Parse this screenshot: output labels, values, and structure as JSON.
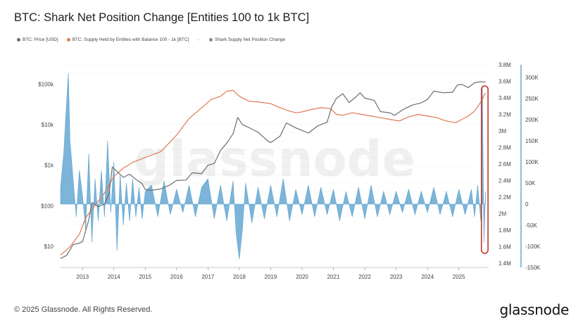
{
  "chart_data": {
    "type": "line",
    "title": "BTC: Shark Net Position Change [Entities 100 to 1k BTC]",
    "watermark": "glassnode",
    "log_left_axis": true,
    "legend": [
      {
        "label": "BTC: Price [USD]",
        "color": "#6e6e6e"
      },
      {
        "label": "BTC: Supply Held by Entities with Balance 100 - 1k [BTC]",
        "color": "#e07a55"
      },
      {
        "label": "Shark Supply Net Position Change",
        "color": "#5ba3cf"
      }
    ],
    "legend_separator": "-",
    "x_ticks": [
      "2013",
      "2014",
      "2015",
      "2016",
      "2017",
      "2018",
      "2019",
      "2020",
      "2021",
      "2022",
      "2023",
      "2024",
      "2025"
    ],
    "y_left_ticks": [
      "$100k",
      "$10k",
      "$1k",
      "$100",
      "$10"
    ],
    "y_mid_ticks": [
      "3.8M",
      "3.6M",
      "3.4M",
      "3.2M",
      "3M",
      "2.8M",
      "2.6M",
      "2.4M",
      "2.2M",
      "2M",
      "1.8M",
      "1.6M",
      "1.4M"
    ],
    "y_right_ticks": [
      "300K",
      "250K",
      "200K",
      "150K",
      "100K",
      "50K",
      "0",
      "-50K",
      "-100K",
      "-150K"
    ],
    "xlim": [
      2012.3,
      2025.95
    ],
    "y_left_range_usd": [
      3,
      300000
    ],
    "y_mid_range": [
      1350000,
      3800000
    ],
    "y_right_range": [
      -150000,
      330000
    ],
    "series": [
      {
        "name": "BTC: Price [USD]",
        "color": "#6e6e6e",
        "axis": "left",
        "x": [
          2012.3,
          2012.5,
          2012.7,
          2012.9,
          2013.0,
          2013.2,
          2013.3,
          2013.5,
          2013.7,
          2013.85,
          2013.95,
          2014.1,
          2014.3,
          2014.5,
          2014.7,
          2014.9,
          2015.0,
          2015.2,
          2015.5,
          2015.8,
          2016.0,
          2016.3,
          2016.5,
          2016.8,
          2017.0,
          2017.2,
          2017.4,
          2017.6,
          2017.8,
          2017.95,
          2018.1,
          2018.3,
          2018.6,
          2018.9,
          2019.0,
          2019.3,
          2019.5,
          2019.8,
          2020.0,
          2020.2,
          2020.5,
          2020.8,
          2020.95,
          2021.1,
          2021.3,
          2021.5,
          2021.7,
          2021.85,
          2022.0,
          2022.3,
          2022.5,
          2022.8,
          2022.95,
          2023.2,
          2023.5,
          2023.8,
          2024.0,
          2024.2,
          2024.5,
          2024.8,
          2024.95,
          2025.1,
          2025.3,
          2025.5,
          2025.7,
          2025.85
        ],
        "values": [
          5,
          6,
          11,
          12,
          13,
          45,
          120,
          95,
          110,
          200,
          900,
          700,
          500,
          600,
          450,
          350,
          250,
          240,
          260,
          330,
          420,
          430,
          650,
          620,
          1000,
          1100,
          2300,
          3500,
          6000,
          15000,
          10000,
          8500,
          6500,
          4000,
          3600,
          5200,
          11000,
          8300,
          7200,
          6200,
          9300,
          11500,
          28000,
          45000,
          58000,
          35000,
          47000,
          61000,
          45000,
          40000,
          21000,
          19500,
          17000,
          23000,
          30000,
          34500,
          42000,
          67000,
          61000,
          63000,
          95000,
          98000,
          82000,
          108000,
          115000,
          112000
        ]
      },
      {
        "name": "BTC: Supply Held by Entities with Balance 100 - 1k [BTC]",
        "color": "#e07a55",
        "axis": "mid",
        "x": [
          2012.3,
          2012.6,
          2012.9,
          2013.1,
          2013.4,
          2013.7,
          2014.0,
          2014.3,
          2014.6,
          2015.0,
          2015.5,
          2016.0,
          2016.4,
          2016.8,
          2017.1,
          2017.4,
          2017.6,
          2017.8,
          2018.0,
          2018.3,
          2018.6,
          2019.0,
          2019.3,
          2019.6,
          2019.8,
          2020.0,
          2020.3,
          2020.6,
          2020.9,
          2021.1,
          2021.3,
          2021.6,
          2021.9,
          2022.2,
          2022.5,
          2022.8,
          2023.1,
          2023.4,
          2023.7,
          2024.0,
          2024.3,
          2024.6,
          2024.9,
          2025.1,
          2025.3,
          2025.5,
          2025.7,
          2025.85
        ],
        "values": [
          1500000.0,
          1600000.0,
          1750000.0,
          1950000.0,
          2100000.0,
          2250000.0,
          2450000.0,
          2550000.0,
          2620000.0,
          2680000.0,
          2750000.0,
          2950000.0,
          3150000.0,
          3280000.0,
          3380000.0,
          3420000.0,
          3480000.0,
          3490000.0,
          3420000.0,
          3360000.0,
          3350000.0,
          3330000.0,
          3280000.0,
          3240000.0,
          3220000.0,
          3230000.0,
          3260000.0,
          3280000.0,
          3270000.0,
          3200000.0,
          3190000.0,
          3220000.0,
          3200000.0,
          3180000.0,
          3160000.0,
          3140000.0,
          3120000.0,
          3170000.0,
          3200000.0,
          3180000.0,
          3160000.0,
          3120000.0,
          3100000.0,
          3140000.0,
          3180000.0,
          3240000.0,
          3350000.0,
          3460000.0
        ]
      },
      {
        "name": "Shark Supply Net Position Change",
        "color": "#5ba3cf",
        "axis": "right",
        "type": "area",
        "x": [
          2012.3,
          2012.4,
          2012.5,
          2012.55,
          2012.6,
          2012.7,
          2012.8,
          2012.9,
          2013.0,
          2013.1,
          2013.2,
          2013.3,
          2013.4,
          2013.5,
          2013.6,
          2013.7,
          2013.8,
          2013.9,
          2014.0,
          2014.1,
          2014.2,
          2014.3,
          2014.4,
          2014.5,
          2014.6,
          2014.7,
          2014.8,
          2014.9,
          2015.0,
          2015.2,
          2015.4,
          2015.6,
          2015.8,
          2016.0,
          2016.2,
          2016.4,
          2016.6,
          2016.8,
          2017.0,
          2017.2,
          2017.4,
          2017.6,
          2017.8,
          2017.9,
          2018.0,
          2018.1,
          2018.2,
          2018.4,
          2018.6,
          2018.8,
          2019.0,
          2019.2,
          2019.4,
          2019.6,
          2019.8,
          2020.0,
          2020.2,
          2020.4,
          2020.6,
          2020.8,
          2021.0,
          2021.2,
          2021.4,
          2021.6,
          2021.8,
          2022.0,
          2022.2,
          2022.4,
          2022.6,
          2022.8,
          2023.0,
          2023.2,
          2023.4,
          2023.6,
          2023.8,
          2024.0,
          2024.2,
          2024.4,
          2024.6,
          2024.8,
          2025.0,
          2025.2,
          2025.4,
          2025.5,
          2025.6,
          2025.7,
          2025.75,
          2025.8,
          2025.85
        ],
        "values": [
          40000,
          120000,
          250000,
          310000,
          150000,
          60000,
          -30000,
          80000,
          20000,
          -60000,
          120000,
          -90000,
          60000,
          -40000,
          80000,
          -30000,
          150000,
          -20000,
          100000,
          -110000,
          70000,
          -50000,
          50000,
          -40000,
          60000,
          -30000,
          40000,
          -35000,
          30000,
          45000,
          -30000,
          55000,
          -25000,
          35000,
          -20000,
          45000,
          -30000,
          40000,
          60000,
          -35000,
          45000,
          -40000,
          55000,
          -70000,
          -130000,
          -60000,
          50000,
          -45000,
          40000,
          -35000,
          45000,
          -30000,
          60000,
          -40000,
          35000,
          -25000,
          45000,
          -30000,
          40000,
          -25000,
          35000,
          -40000,
          30000,
          -30000,
          40000,
          -35000,
          45000,
          -30000,
          30000,
          -25000,
          30000,
          -20000,
          35000,
          -25000,
          30000,
          -20000,
          40000,
          -25000,
          30000,
          -30000,
          35000,
          -25000,
          35000,
          -30000,
          45000,
          -40000,
          280000,
          -90000,
          30000
        ]
      }
    ]
  },
  "footer": {
    "copyright": "© 2025 Glassnode. All Rights Reserved.",
    "brand": "glassnode"
  }
}
